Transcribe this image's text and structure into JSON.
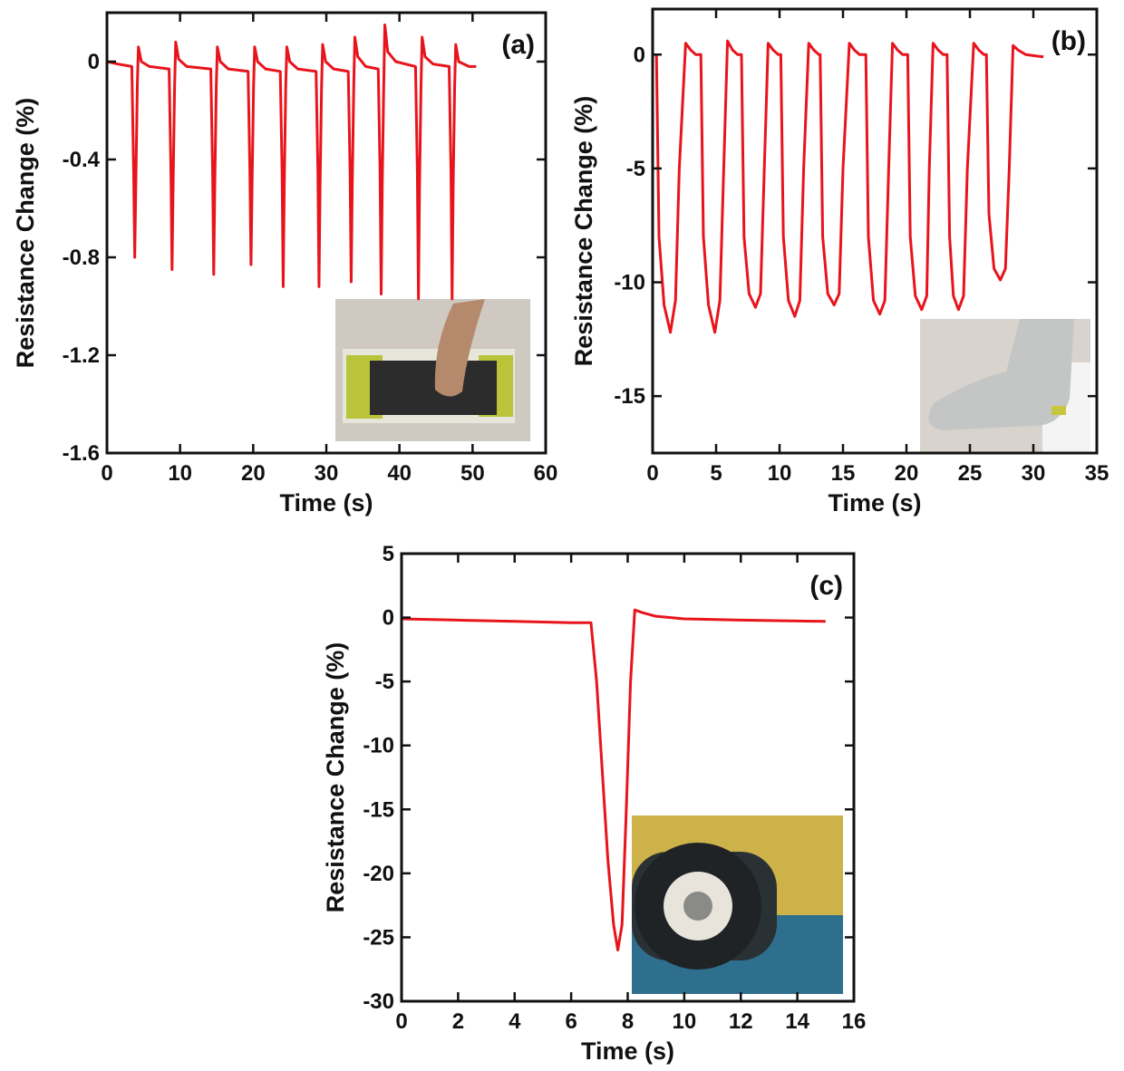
{
  "chart_data": [
    {
      "type": "line",
      "annotation": "(a)",
      "x_label": "Time (s)",
      "y_label": "Resistance Change (%)",
      "x": [
        0,
        1.5,
        3.4,
        3.65,
        3.8,
        3.95,
        4.15,
        4.3,
        4.7,
        5.8,
        8.5,
        8.75,
        8.9,
        9.05,
        9.25,
        9.4,
        9.8,
        10.9,
        14.2,
        14.45,
        14.6,
        14.75,
        14.95,
        15.1,
        15.5,
        16.6,
        19.3,
        19.55,
        19.7,
        19.85,
        20.05,
        20.2,
        20.6,
        21.7,
        23.7,
        23.95,
        24.1,
        24.25,
        24.45,
        24.6,
        25.0,
        26.1,
        28.6,
        28.85,
        29.0,
        29.15,
        29.35,
        29.5,
        29.9,
        31.0,
        33.0,
        33.25,
        33.4,
        33.55,
        33.75,
        33.9,
        34.3,
        35.4,
        37.1,
        37.35,
        37.5,
        37.65,
        37.85,
        38.0,
        38.4,
        39.5,
        42.2,
        42.45,
        42.6,
        42.75,
        42.95,
        43.1,
        43.5,
        44.6,
        46.8,
        47.05,
        47.2,
        47.35,
        47.55,
        47.7,
        48.1,
        49.5,
        50.5
      ],
      "series": [
        {
          "color": "#e8141c",
          "values": [
            0,
            -0.01,
            -0.02,
            -0.45,
            -0.8,
            -0.5,
            -0.1,
            0.06,
            0.0,
            -0.02,
            -0.03,
            -0.45,
            -0.85,
            -0.5,
            -0.1,
            0.08,
            0.01,
            -0.02,
            -0.03,
            -0.45,
            -0.87,
            -0.5,
            -0.1,
            0.06,
            0.0,
            -0.03,
            -0.04,
            -0.45,
            -0.83,
            -0.5,
            -0.1,
            0.06,
            0.0,
            -0.03,
            -0.04,
            -0.45,
            -0.92,
            -0.5,
            -0.1,
            0.06,
            0.0,
            -0.03,
            -0.04,
            -0.45,
            -0.92,
            -0.5,
            -0.1,
            0.07,
            0.0,
            -0.03,
            -0.04,
            -0.45,
            -0.9,
            -0.5,
            -0.1,
            0.1,
            0.02,
            -0.02,
            -0.03,
            -0.45,
            -0.95,
            -0.5,
            -0.1,
            0.15,
            0.04,
            0.0,
            -0.02,
            -0.45,
            -0.97,
            -0.5,
            -0.1,
            0.1,
            0.02,
            -0.01,
            -0.02,
            -0.45,
            -0.97,
            -0.5,
            -0.1,
            0.07,
            0.0,
            -0.02,
            -0.02
          ]
        }
      ],
      "xlim": [
        0,
        60
      ],
      "xticks": [
        0,
        10,
        20,
        30,
        40,
        50,
        60
      ],
      "ylim": [
        -1.6,
        0.2
      ],
      "yticks": [
        0,
        -0.4,
        -0.8,
        -1.2,
        -1.6
      ]
    },
    {
      "type": "line",
      "annotation": "(b)",
      "x_label": "Time (s)",
      "y_label": "Resistance Change (%)",
      "x": [
        0.3,
        0.5,
        0.9,
        1.4,
        1.8,
        2.1,
        2.6,
        3.0,
        3.4,
        3.8,
        4.0,
        4.4,
        4.9,
        5.3,
        5.6,
        5.9,
        6.3,
        6.7,
        7.0,
        7.2,
        7.6,
        8.1,
        8.5,
        8.8,
        9.1,
        9.5,
        9.9,
        10.1,
        10.3,
        10.7,
        11.2,
        11.6,
        11.9,
        12.3,
        12.7,
        13.1,
        13.2,
        13.4,
        13.8,
        14.3,
        14.7,
        15.0,
        15.5,
        15.9,
        16.3,
        16.8,
        17.0,
        17.4,
        17.9,
        18.3,
        18.6,
        18.9,
        19.3,
        19.7,
        20.1,
        20.3,
        20.7,
        21.2,
        21.6,
        21.8,
        22.1,
        22.5,
        22.9,
        23.2,
        23.4,
        23.7,
        24.1,
        24.5,
        24.8,
        25.3,
        25.7,
        26.1,
        26.3,
        26.5,
        26.9,
        27.4,
        27.8,
        28.1,
        28.4,
        28.8,
        29.4,
        30.8
      ],
      "series": [
        {
          "color": "#e8141c",
          "values": [
            0,
            -8,
            -11,
            -12.2,
            -10.8,
            -5,
            0.5,
            0.2,
            0.0,
            0,
            -8,
            -11,
            -12.2,
            -10.8,
            -5,
            0.6,
            0.2,
            0.0,
            0,
            -8,
            -10.5,
            -11.1,
            -10.5,
            -5,
            0.5,
            0.2,
            0.0,
            0,
            -8,
            -10.8,
            -11.5,
            -10.8,
            -5,
            0.5,
            0.2,
            0,
            0,
            -8,
            -10.5,
            -11.0,
            -10.5,
            -5,
            0.5,
            0.2,
            0.0,
            0,
            -8,
            -10.8,
            -11.4,
            -10.8,
            -5,
            0.5,
            0.2,
            0,
            0,
            -8,
            -10.6,
            -11.2,
            -10.6,
            -5,
            0.5,
            0.2,
            0,
            0,
            -8,
            -10.6,
            -11.2,
            -10.6,
            -5,
            0.5,
            0.2,
            0,
            0,
            -7,
            -9.4,
            -9.9,
            -9.4,
            -5,
            0.4,
            0.2,
            0.0,
            -0.1
          ]
        }
      ],
      "xlim": [
        0,
        35
      ],
      "xticks": [
        0,
        5,
        10,
        15,
        20,
        25,
        30,
        35
      ],
      "ylim": [
        -17.5,
        2
      ],
      "yticks": [
        0,
        -5,
        -10,
        -15
      ]
    },
    {
      "type": "line",
      "annotation": "(c)",
      "x_label": "Time (s)",
      "y_label": "Resistance Change (%)",
      "x": [
        0,
        2,
        4,
        6,
        6.7,
        6.9,
        7.1,
        7.3,
        7.5,
        7.65,
        7.8,
        7.95,
        8.1,
        8.25,
        8.5,
        9,
        10,
        12,
        15
      ],
      "series": [
        {
          "color": "#e8141c",
          "values": [
            -0.1,
            -0.2,
            -0.3,
            -0.4,
            -0.4,
            -5,
            -12,
            -19,
            -24,
            -26,
            -24,
            -15,
            -5,
            0.6,
            0.4,
            0.1,
            -0.1,
            -0.2,
            -0.3
          ]
        }
      ],
      "xlim": [
        0,
        16
      ],
      "xticks": [
        0,
        2,
        4,
        6,
        8,
        10,
        12,
        14,
        16
      ],
      "ylim": [
        -30,
        5
      ],
      "yticks": [
        5,
        0,
        -5,
        -10,
        -15,
        -20,
        -25,
        -30
      ]
    }
  ]
}
